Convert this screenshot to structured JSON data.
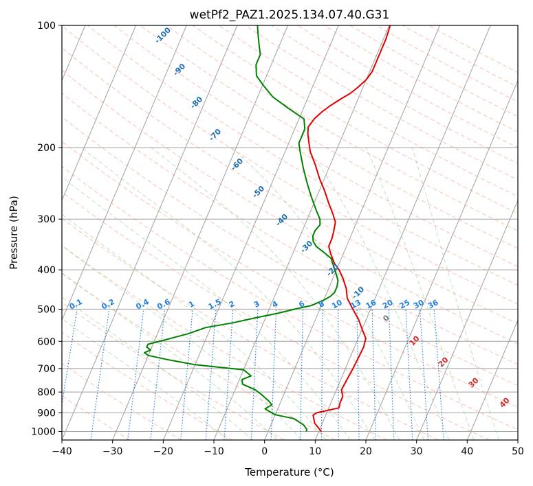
{
  "chart_data": {
    "type": "line",
    "title": "wetPf2_PAZ1.2025.134.07.40.G31",
    "xlabel": "Temperature (°C)",
    "ylabel": "Pressure (hPa)",
    "xlim": [
      -40,
      50
    ],
    "ylim": [
      1050,
      100
    ],
    "y_scale": "log",
    "x_ticks": [
      -40,
      -30,
      -20,
      -10,
      0,
      10,
      20,
      30,
      40,
      50
    ],
    "y_ticks": [
      100,
      200,
      300,
      400,
      500,
      600,
      700,
      800,
      900,
      1000
    ],
    "grid": true,
    "skew": "skew-T log-P",
    "series": [
      {
        "color": "#e00000",
        "points": [
          [
            10.5,
            1000
          ],
          [
            8.5,
            955
          ],
          [
            7.5,
            912
          ],
          [
            8,
            900
          ],
          [
            12,
            875
          ],
          [
            11.8,
            850
          ],
          [
            11.8,
            820
          ],
          [
            11,
            790
          ],
          [
            11.2,
            750
          ],
          [
            11.5,
            700
          ],
          [
            11.7,
            650
          ],
          [
            11.8,
            620
          ],
          [
            11.5,
            590
          ],
          [
            10,
            560
          ],
          [
            8.5,
            530
          ],
          [
            6.5,
            500
          ],
          [
            4.5,
            470
          ],
          [
            3.5,
            445
          ],
          [
            2,
            420
          ],
          [
            0.5,
            400
          ],
          [
            -1,
            385
          ],
          [
            -2.5,
            365
          ],
          [
            -3.5,
            350
          ],
          [
            -3.5,
            335
          ],
          [
            -3.8,
            320
          ],
          [
            -4.2,
            305
          ],
          [
            -5.5,
            290
          ],
          [
            -7,
            275
          ],
          [
            -9,
            255
          ],
          [
            -11,
            238
          ],
          [
            -13,
            220
          ],
          [
            -15,
            205
          ],
          [
            -16,
            195
          ],
          [
            -17,
            185
          ],
          [
            -17.5,
            178
          ],
          [
            -17,
            170
          ],
          [
            -16,
            163
          ],
          [
            -15,
            158
          ],
          [
            -13.5,
            152
          ],
          [
            -12,
            147
          ],
          [
            -11,
            142
          ],
          [
            -10,
            136
          ],
          [
            -9.5,
            130
          ],
          [
            -9.5,
            122
          ],
          [
            -9.5,
            115
          ],
          [
            -9.5,
            108
          ],
          [
            -9.8,
            100
          ]
        ]
      },
      {
        "color": "#008000",
        "points": [
          [
            7.5,
            1000
          ],
          [
            7.5,
            990
          ],
          [
            6.5,
            965
          ],
          [
            4,
            930
          ],
          [
            0,
            910
          ],
          [
            -2.5,
            880
          ],
          [
            -1.5,
            860
          ],
          [
            -2.5,
            840
          ],
          [
            -4.5,
            810
          ],
          [
            -6,
            790
          ],
          [
            -9,
            765
          ],
          [
            -9.5,
            745
          ],
          [
            -8,
            730
          ],
          [
            -10,
            705
          ],
          [
            -20,
            685
          ],
          [
            -26,
            665
          ],
          [
            -30,
            650
          ],
          [
            -31,
            640
          ],
          [
            -30,
            630
          ],
          [
            -31,
            620
          ],
          [
            -31,
            610
          ],
          [
            -28,
            595
          ],
          [
            -24,
            575
          ],
          [
            -21,
            555
          ],
          [
            -16,
            540
          ],
          [
            -12,
            525
          ],
          [
            -8,
            512
          ],
          [
            -5,
            500
          ],
          [
            -2,
            490
          ],
          [
            0,
            475
          ],
          [
            1,
            465
          ],
          [
            1.5,
            455
          ],
          [
            1.5,
            440
          ],
          [
            1.2,
            425
          ],
          [
            0,
            405
          ],
          [
            -1,
            390
          ],
          [
            -2,
            375
          ],
          [
            -3.5,
            365
          ],
          [
            -6,
            350
          ],
          [
            -7,
            340
          ],
          [
            -7.5,
            330
          ],
          [
            -7.5,
            320
          ],
          [
            -7,
            310
          ],
          [
            -7.5,
            300
          ],
          [
            -9,
            285
          ],
          [
            -11,
            265
          ],
          [
            -13,
            245
          ],
          [
            -15,
            225
          ],
          [
            -17,
            205
          ],
          [
            -18,
            195
          ],
          [
            -18,
            188
          ],
          [
            -18,
            180
          ],
          [
            -19,
            170
          ],
          [
            -23,
            160
          ],
          [
            -27,
            150
          ],
          [
            -30,
            140
          ],
          [
            -32,
            133
          ],
          [
            -33,
            125
          ],
          [
            -33,
            118
          ],
          [
            -34,
            112
          ],
          [
            -35,
            106
          ],
          [
            -36,
            100
          ]
        ]
      }
    ],
    "dry_adiabat_labels": [
      "-100",
      "-90",
      "-80",
      "-70",
      "-60",
      "-50",
      "-40",
      "-30",
      "-20",
      "-10",
      "0",
      "10",
      "20",
      "30",
      "40"
    ],
    "mixing_ratio_labels": [
      "0.1",
      "0.2",
      "0.4",
      "0.6",
      "1",
      "1.5",
      "2",
      "3",
      "4",
      "6",
      "8",
      "10",
      "13",
      "16",
      "20",
      "25",
      "30",
      "36"
    ]
  },
  "colors": {
    "temperature": "#e00000",
    "dewpoint": "#008000",
    "dry_adiabat": "#fa8c6e",
    "moist_adiabat": "#7cc67c",
    "mixing_ratio": "#1f7fe0",
    "isotherm_grid": "#a0a0a0",
    "cold_label": "#1f6fb4",
    "warm_label": "#d62728",
    "zero_label": "#777777"
  }
}
